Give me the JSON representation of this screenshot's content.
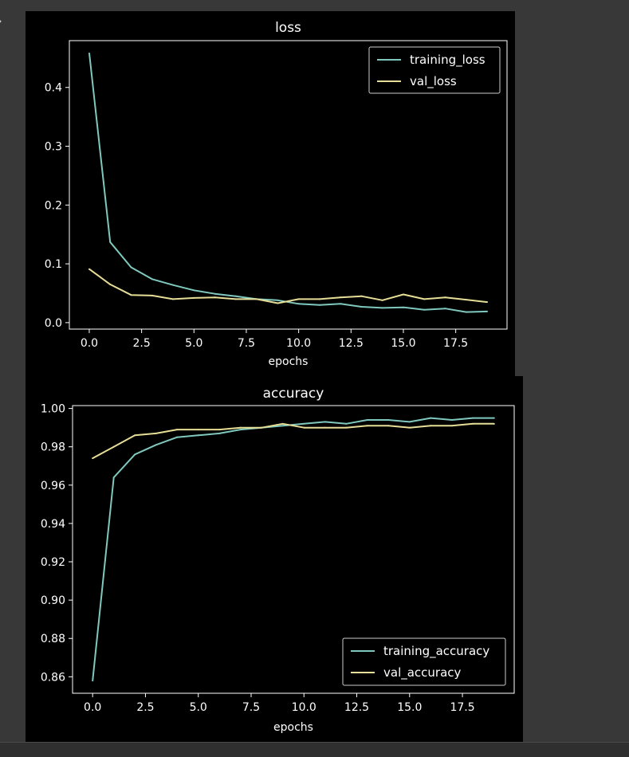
{
  "output_marker": "›",
  "colors": {
    "training": "#7fc8be",
    "validation": "#e6dd96",
    "axes": "#ffffff",
    "figure_bg": "#000000"
  },
  "chart_data": [
    {
      "type": "line",
      "title": "loss",
      "xlabel": "epochs",
      "ylabel": "",
      "xlim": [
        -0.95,
        19.95
      ],
      "ylim": [
        -0.011,
        0.4796
      ],
      "xticks": [
        0,
        2.5,
        5,
        7.5,
        10,
        12.5,
        15,
        17.5
      ],
      "xtick_labels": [
        "0.0",
        "2.5",
        "5.0",
        "7.5",
        "10.0",
        "12.5",
        "15.0",
        "17.5"
      ],
      "yticks": [
        0,
        0.1,
        0.2,
        0.3,
        0.4
      ],
      "ytick_labels": [
        "0.0",
        "0.1",
        "0.2",
        "0.3",
        "0.4"
      ],
      "grid": false,
      "legend_position": "top-right",
      "x": [
        0,
        1,
        2,
        3,
        4,
        5,
        6,
        7,
        8,
        9,
        10,
        11,
        12,
        13,
        14,
        15,
        16,
        17,
        18,
        19
      ],
      "series": [
        {
          "name": "training_loss",
          "color_key": "training",
          "values": [
            0.458,
            0.137,
            0.094,
            0.074,
            0.064,
            0.055,
            0.049,
            0.045,
            0.04,
            0.038,
            0.032,
            0.03,
            0.032,
            0.027,
            0.025,
            0.026,
            0.022,
            0.024,
            0.018,
            0.019
          ]
        },
        {
          "name": "val_loss",
          "color_key": "validation",
          "values": [
            0.091,
            0.065,
            0.047,
            0.046,
            0.04,
            0.042,
            0.043,
            0.04,
            0.04,
            0.033,
            0.04,
            0.04,
            0.043,
            0.045,
            0.038,
            0.048,
            0.04,
            0.043,
            0.039,
            0.035
          ]
        }
      ]
    },
    {
      "type": "line",
      "title": "accuracy",
      "xlabel": "epochs",
      "ylabel": "",
      "xlim": [
        -0.95,
        19.95
      ],
      "ylim": [
        0.8514,
        1.0015
      ],
      "xticks": [
        0,
        2.5,
        5,
        7.5,
        10,
        12.5,
        15,
        17.5
      ],
      "xtick_labels": [
        "0.0",
        "2.5",
        "5.0",
        "7.5",
        "10.0",
        "12.5",
        "15.0",
        "17.5"
      ],
      "yticks": [
        0.86,
        0.88,
        0.9,
        0.92,
        0.94,
        0.96,
        0.98,
        1.0
      ],
      "ytick_labels": [
        "0.86",
        "0.88",
        "0.90",
        "0.92",
        "0.94",
        "0.96",
        "0.98",
        "1.00"
      ],
      "grid": false,
      "legend_position": "bottom-right",
      "x": [
        0,
        1,
        2,
        3,
        4,
        5,
        6,
        7,
        8,
        9,
        10,
        11,
        12,
        13,
        14,
        15,
        16,
        17,
        18,
        19
      ],
      "series": [
        {
          "name": "training_accuracy",
          "color_key": "training",
          "values": [
            0.858,
            0.964,
            0.976,
            0.981,
            0.985,
            0.986,
            0.987,
            0.989,
            0.99,
            0.991,
            0.992,
            0.993,
            0.992,
            0.994,
            0.994,
            0.993,
            0.995,
            0.994,
            0.995,
            0.995
          ]
        },
        {
          "name": "val_accuracy",
          "color_key": "validation",
          "values": [
            0.974,
            0.98,
            0.986,
            0.987,
            0.989,
            0.989,
            0.989,
            0.99,
            0.99,
            0.992,
            0.99,
            0.99,
            0.99,
            0.991,
            0.991,
            0.99,
            0.991,
            0.991,
            0.992,
            0.992
          ]
        }
      ]
    }
  ]
}
